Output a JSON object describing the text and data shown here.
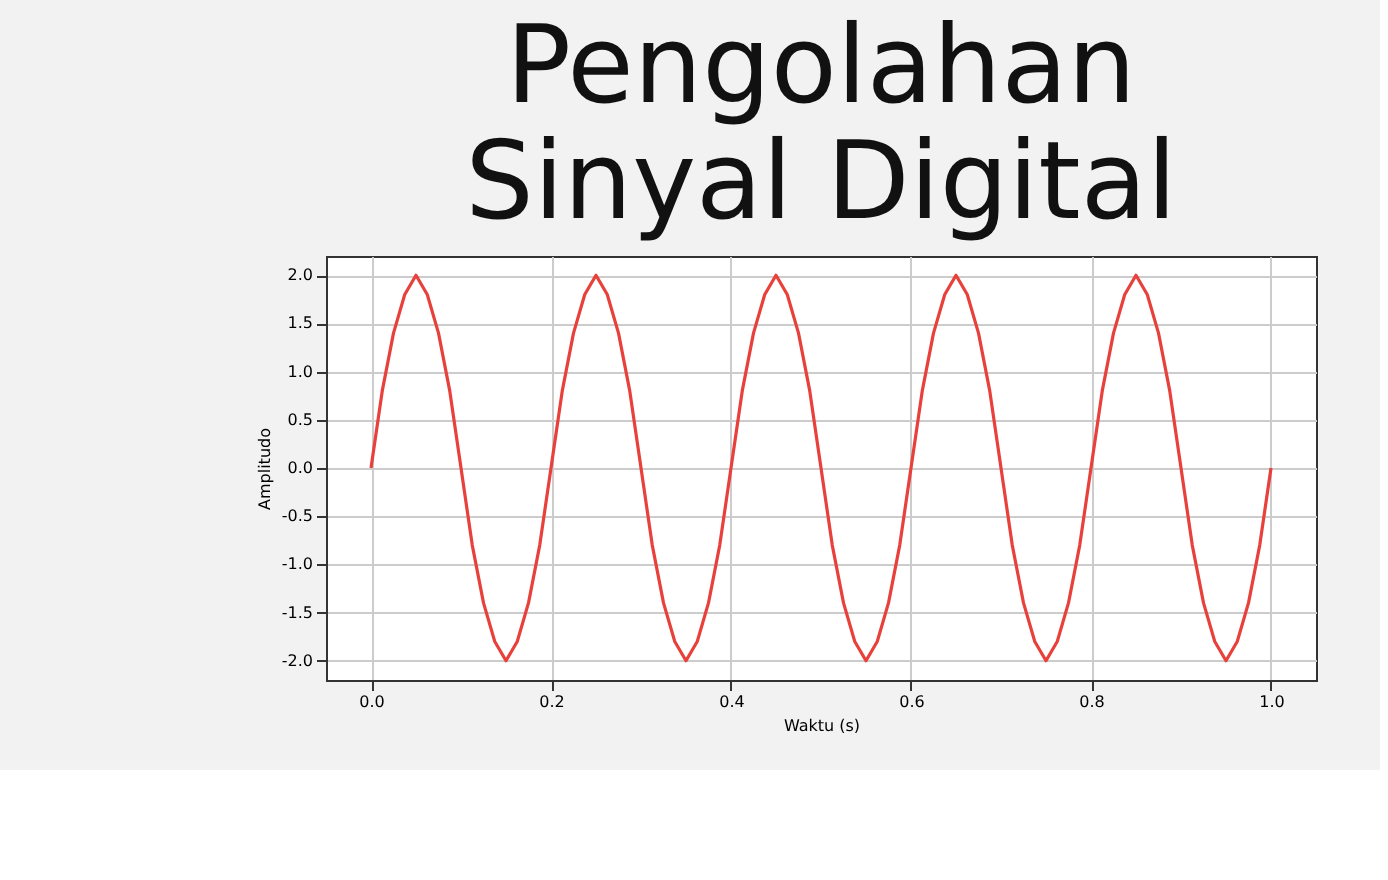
{
  "chart_data": {
    "type": "line",
    "title": "Pengolahan Sinyal Digital",
    "xlabel": "Waktu (s)",
    "ylabel": "Amplitudo",
    "x": [
      0,
      0.0125,
      0.025,
      0.0375,
      0.05,
      0.0625,
      0.075,
      0.0875,
      0.1,
      0.1125,
      0.125,
      0.1375,
      0.15,
      0.1625,
      0.175,
      0.1875,
      0.2,
      0.2125,
      0.225,
      0.2375,
      0.25,
      0.2625,
      0.275,
      0.2875,
      0.3,
      0.3125,
      0.325,
      0.3375,
      0.35,
      0.3625,
      0.375,
      0.3875,
      0.4,
      0.4125,
      0.425,
      0.4375,
      0.45,
      0.4625,
      0.475,
      0.4875,
      0.5,
      0.5125,
      0.525,
      0.5375,
      0.55,
      0.5625,
      0.575,
      0.5875,
      0.6,
      0.6125,
      0.625,
      0.6375,
      0.65,
      0.6625,
      0.675,
      0.6875,
      0.7,
      0.7125,
      0.725,
      0.7375,
      0.75,
      0.7625,
      0.775,
      0.7875,
      0.8,
      0.8125,
      0.825,
      0.8375,
      0.85,
      0.8625,
      0.875,
      0.8875,
      0.9,
      0.9125,
      0.925,
      0.9375,
      0.95,
      0.9625,
      0.975,
      0.9875,
      1.0
    ],
    "series": [
      {
        "color": "#e8413c",
        "values": [
          0,
          0.8,
          1.4,
          1.8,
          2,
          1.8,
          1.4,
          0.8,
          0,
          -0.8,
          -1.4,
          -1.8,
          -2,
          -1.8,
          -1.4,
          -0.8,
          0,
          0.8,
          1.4,
          1.8,
          2,
          1.8,
          1.4,
          0.8,
          0,
          -0.8,
          -1.4,
          -1.8,
          -2,
          -1.8,
          -1.4,
          -0.8,
          0,
          0.8,
          1.4,
          1.8,
          2,
          1.8,
          1.4,
          0.8,
          0,
          -0.8,
          -1.4,
          -1.8,
          -2,
          -1.8,
          -1.4,
          -0.8,
          0,
          0.8,
          1.4,
          1.8,
          2,
          1.8,
          1.4,
          0.8,
          0,
          -0.8,
          -1.4,
          -1.8,
          -2,
          -1.8,
          -1.4,
          -0.8,
          0,
          0.8,
          1.4,
          1.8,
          2,
          1.8,
          1.4,
          0.8,
          0,
          -0.8,
          -1.4,
          -1.8,
          -2,
          -1.8,
          -1.4,
          -0.8,
          0
        ]
      }
    ],
    "xlim": [
      -0.05,
      1.05
    ],
    "xticks": [
      {
        "value": 0,
        "label": "0.0"
      },
      0.2,
      0.4,
      0.6,
      0.8,
      {
        "value": 1,
        "label": "1.0"
      }
    ],
    "ylim": [
      -2.2,
      2.2
    ],
    "yticks": [
      {
        "value": -2,
        "label": "-2.0"
      },
      -1.5,
      {
        "value": -1,
        "label": "-1.0"
      },
      -0.5,
      {
        "value": 0,
        "label": "0.0"
      },
      0.5,
      {
        "value": 1,
        "label": "1.0"
      },
      1.5,
      {
        "value": 2,
        "label": "2.0"
      }
    ],
    "grid": true,
    "marker": "none",
    "line_style": "solid"
  }
}
